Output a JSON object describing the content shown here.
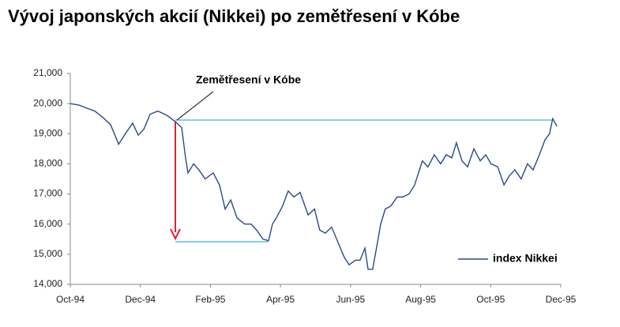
{
  "chart_data": {
    "type": "line",
    "title": "Vývoj japonských akcií (Nikkei) po zemětřesení v Kóbe",
    "annotation": "Zemětřesení v Kóbe",
    "legend": "bottom-right",
    "grid": false,
    "xlim": [
      0,
      14
    ],
    "xticks": [
      {
        "value": 0,
        "label": "Oct-94"
      },
      {
        "value": 2,
        "label": "Dec-94"
      },
      {
        "value": 4,
        "label": "Feb-95"
      },
      {
        "value": 6,
        "label": "Apr-95"
      },
      {
        "value": 8,
        "label": "Jun-95"
      },
      {
        "value": 10,
        "label": "Aug-95"
      },
      {
        "value": 12,
        "label": "Oct-95"
      },
      {
        "value": 14,
        "label": "Dec-95"
      }
    ],
    "ylim": [
      14000,
      21000
    ],
    "yticks": [
      {
        "value": 14000,
        "label": "14,000"
      },
      {
        "value": 15000,
        "label": "15,000"
      },
      {
        "value": 16000,
        "label": "16,000"
      },
      {
        "value": 17000,
        "label": "17,000"
      },
      {
        "value": 18000,
        "label": "18,000"
      },
      {
        "value": 19000,
        "label": "19,000"
      },
      {
        "value": 20000,
        "label": "20,000"
      },
      {
        "value": 21000,
        "label": "21,000"
      }
    ],
    "x": [
      0,
      0.25,
      0.47,
      0.7,
      0.92,
      1.15,
      1.38,
      1.6,
      1.78,
      1.94,
      2.1,
      2.28,
      2.5,
      2.77,
      3.0,
      3.18,
      3.29,
      3.36,
      3.52,
      3.67,
      3.85,
      4.08,
      4.26,
      4.42,
      4.58,
      4.76,
      4.98,
      5.16,
      5.32,
      5.5,
      5.66,
      5.77,
      5.88,
      6.06,
      6.22,
      6.38,
      6.56,
      6.79,
      6.97,
      7.12,
      7.28,
      7.46,
      7.64,
      7.82,
      7.96,
      8.14,
      8.27,
      8.41,
      8.5,
      8.63,
      8.77,
      8.86,
      8.99,
      9.15,
      9.33,
      9.49,
      9.67,
      9.83,
      10.05,
      10.21,
      10.39,
      10.57,
      10.73,
      10.89,
      11.02,
      11.18,
      11.34,
      11.52,
      11.7,
      11.86,
      12.01,
      12.2,
      12.38,
      12.53,
      12.69,
      12.87,
      13.05,
      13.21,
      13.39,
      13.55,
      13.68,
      13.77,
      13.89
    ],
    "series": [
      {
        "name": "index Nikkei",
        "color": "#2b4a86",
        "values": [
          20000,
          19950,
          19850,
          19750,
          19550,
          19300,
          18650,
          19050,
          19350,
          18950,
          19150,
          19650,
          19750,
          19600,
          19400,
          19200,
          18200,
          17700,
          18000,
          17800,
          17500,
          17700,
          17300,
          16500,
          16800,
          16200,
          16000,
          16000,
          15800,
          15500,
          15450,
          16000,
          16200,
          16600,
          17100,
          16900,
          17050,
          16300,
          16500,
          15800,
          15700,
          15900,
          15400,
          14900,
          14650,
          14800,
          14800,
          15200,
          14500,
          14500,
          15400,
          16000,
          16500,
          16600,
          16900,
          16900,
          17000,
          17300,
          18100,
          17900,
          18300,
          18000,
          18300,
          18200,
          18700,
          18100,
          17900,
          18500,
          18100,
          18300,
          18000,
          17900,
          17300,
          17600,
          17800,
          17500,
          18000,
          17800,
          18300,
          18800,
          19000,
          19500,
          19250
        ]
      }
    ]
  }
}
